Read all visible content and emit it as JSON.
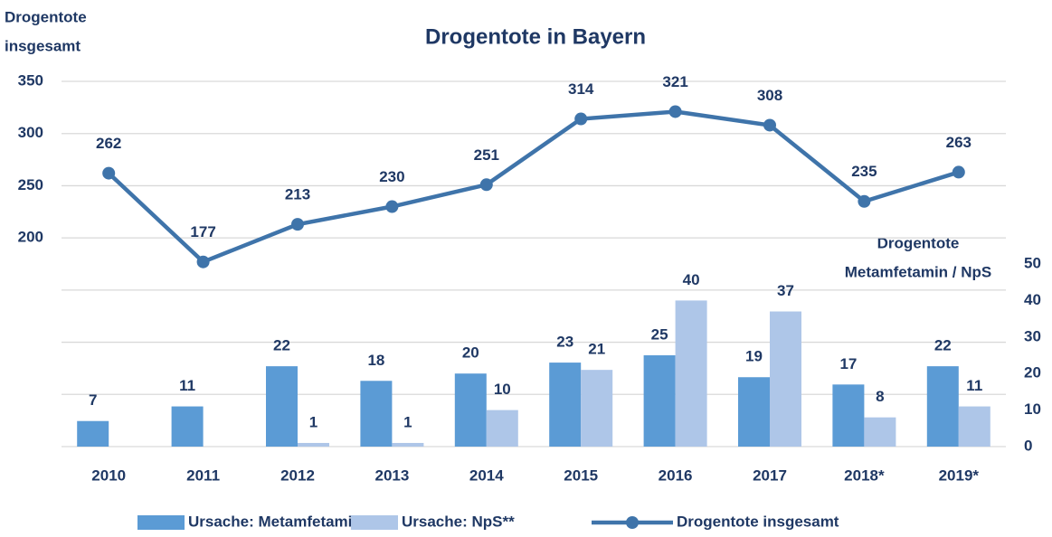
{
  "chart_data": {
    "type": "bar_line",
    "title": "Drogentote in Bayern",
    "y_label": [
      "Drogentote",
      "insgesamt"
    ],
    "y2_label": [
      "Drogentote",
      "Metamfetamin / NpS"
    ],
    "categories": [
      "2010",
      "2011",
      "2012",
      "2013",
      "2014",
      "2015",
      "2016",
      "2017",
      "2018*",
      "2019*"
    ],
    "series": [
      {
        "name": "Ursache: Metamfetamin",
        "type": "bar",
        "axis": "y2",
        "color": "#5b9bd5",
        "values": [
          7,
          11,
          22,
          18,
          20,
          23,
          25,
          19,
          17,
          22
        ]
      },
      {
        "name": "Ursache: NpS**",
        "type": "bar",
        "axis": "y2",
        "color": "#aec6e8",
        "values": [
          null,
          null,
          1,
          1,
          10,
          21,
          40,
          37,
          8,
          11
        ]
      },
      {
        "name": "Drogentote insgesamt",
        "type": "line",
        "axis": "y",
        "color": "#3f74aa",
        "values": [
          262,
          177,
          213,
          230,
          251,
          314,
          321,
          308,
          235,
          263
        ]
      }
    ],
    "ylim": [
      0,
      350
    ],
    "yticks": [
      {
        "value": 0,
        "label": null
      },
      {
        "value": 50,
        "label": null
      },
      {
        "value": 100,
        "label": null
      },
      {
        "value": 150,
        "label": null
      },
      200,
      250,
      300,
      350
    ],
    "y2lim": [
      0,
      100
    ],
    "y2ticks": [
      0,
      10,
      20,
      30,
      40,
      50
    ],
    "grid": true,
    "legend": "bottom"
  }
}
